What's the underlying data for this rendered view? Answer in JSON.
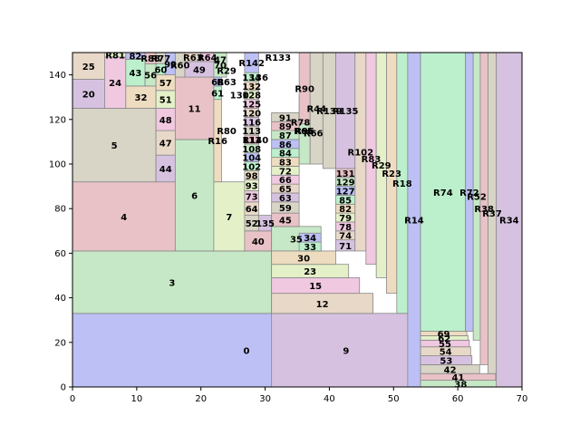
{
  "chart_data": {
    "type": "treemap",
    "title": "",
    "xlabel": "",
    "ylabel": "",
    "xlim": [
      0,
      70
    ],
    "ylim": [
      0,
      150
    ],
    "x_ticks": [
      0,
      10,
      20,
      30,
      40,
      50,
      60,
      70
    ],
    "y_ticks": [
      0,
      20,
      40,
      60,
      80,
      100,
      120,
      140
    ],
    "grid": false,
    "palette": [
      "#bcc0f4",
      "#c6e8c6",
      "#e8c2c6",
      "#d8d4c6",
      "#d6c2e0",
      "#e8d8c8",
      "#f0c8e0",
      "#e4f0c8",
      "#eedcc0",
      "#bcf0cc"
    ],
    "rects": [
      {
        "label": "0",
        "x": 0,
        "y": 0,
        "w": 54.2,
        "h": 33
      },
      {
        "label": "3",
        "x": 0,
        "y": 33,
        "w": 31,
        "h": 28
      },
      {
        "label": "4",
        "x": 0,
        "y": 61,
        "w": 16,
        "h": 31
      },
      {
        "label": "5",
        "x": 0,
        "y": 92,
        "w": 13,
        "h": 33
      },
      {
        "label": "20",
        "x": 0,
        "y": 125,
        "w": 5,
        "h": 13
      },
      {
        "label": "25",
        "x": 0,
        "y": 138,
        "w": 5,
        "h": 12
      },
      {
        "label": "24",
        "x": 5,
        "y": 125,
        "w": 3.3,
        "h": 23
      },
      {
        "label": "R81",
        "x": 5,
        "y": 148,
        "w": 3.3,
        "h": 2
      },
      {
        "label": "32",
        "x": 8.3,
        "y": 125,
        "w": 4.7,
        "h": 10
      },
      {
        "label": "43",
        "x": 8.3,
        "y": 135,
        "w": 3,
        "h": 12
      },
      {
        "label": "82",
        "x": 8.3,
        "y": 147,
        "w": 3,
        "h": 3
      },
      {
        "label": "56",
        "x": 11.3,
        "y": 135,
        "w": 1.7,
        "h": 10
      },
      {
        "label": "R88",
        "x": 11.3,
        "y": 145,
        "w": 1.7,
        "h": 5
      },
      {
        "label": "R77",
        "x": 13,
        "y": 145,
        "w": 1.5,
        "h": 5
      },
      {
        "label": "44",
        "x": 13,
        "y": 92,
        "w": 3,
        "h": 12
      },
      {
        "label": "47",
        "x": 13,
        "y": 104,
        "w": 3,
        "h": 11
      },
      {
        "label": "48",
        "x": 13,
        "y": 115,
        "w": 3,
        "h": 10
      },
      {
        "label": "51",
        "x": 13,
        "y": 125,
        "w": 3,
        "h": 8
      },
      {
        "label": "57",
        "x": 13,
        "y": 133,
        "w": 3,
        "h": 7
      },
      {
        "label": "60",
        "x": 13,
        "y": 140,
        "w": 1.5,
        "h": 5
      },
      {
        "label": "99",
        "x": 14.5,
        "y": 140,
        "w": 1.5,
        "h": 10
      },
      {
        "label": "6",
        "x": 16,
        "y": 61,
        "w": 6,
        "h": 50
      },
      {
        "label": "11",
        "x": 16,
        "y": 111,
        "w": 6,
        "h": 28
      },
      {
        "label": "R60",
        "x": 16,
        "y": 139,
        "w": 1.5,
        "h": 11
      },
      {
        "label": "49",
        "x": 17.5,
        "y": 139,
        "w": 4.5,
        "h": 7
      },
      {
        "label": "R63",
        "x": 17.5,
        "y": 146,
        "w": 2.5,
        "h": 4
      },
      {
        "label": "R64",
        "x": 20,
        "y": 146,
        "w": 2,
        "h": 4
      },
      {
        "label": "7",
        "x": 22,
        "y": 61,
        "w": 4.8,
        "h": 31
      },
      {
        "label": "R16",
        "x": 22,
        "y": 92,
        "w": 1.2,
        "h": 37
      },
      {
        "label": "61",
        "x": 22,
        "y": 129,
        "w": 1.2,
        "h": 6
      },
      {
        "label": "68",
        "x": 22,
        "y": 135,
        "w": 1.2,
        "h": 4
      },
      {
        "label": "70",
        "x": 22,
        "y": 139,
        "w": 2,
        "h": 11
      },
      {
        "label": "40",
        "x": 26.8,
        "y": 61,
        "w": 4.2,
        "h": 9
      },
      {
        "label": "52",
        "x": 26.8,
        "y": 70,
        "w": 2.2,
        "h": 7
      },
      {
        "label": "135",
        "x": 29,
        "y": 70,
        "w": 2,
        "h": 7
      },
      {
        "label": "64",
        "x": 26.8,
        "y": 77,
        "w": 2.2,
        "h": 6
      },
      {
        "label": "73",
        "x": 26.8,
        "y": 83,
        "w": 2.2,
        "h": 5
      },
      {
        "label": "93",
        "x": 26.8,
        "y": 88,
        "w": 2.2,
        "h": 5
      },
      {
        "label": "98",
        "x": 26.8,
        "y": 93,
        "w": 2.2,
        "h": 4
      },
      {
        "label": "102",
        "x": 26.8,
        "y": 97,
        "w": 2.2,
        "h": 4
      },
      {
        "label": "104",
        "x": 26.8,
        "y": 101,
        "w": 2.2,
        "h": 4
      },
      {
        "label": "108",
        "x": 26.8,
        "y": 105,
        "w": 2.2,
        "h": 4
      },
      {
        "label": "111",
        "x": 26.8,
        "y": 109,
        "w": 2.2,
        "h": 4
      },
      {
        "label": "113",
        "x": 26.8,
        "y": 113,
        "w": 2.2,
        "h": 4
      },
      {
        "label": "116",
        "x": 26.8,
        "y": 117,
        "w": 2.2,
        "h": 4
      },
      {
        "label": "120",
        "x": 26.8,
        "y": 121,
        "w": 2.2,
        "h": 4
      },
      {
        "label": "125",
        "x": 26.8,
        "y": 125,
        "w": 2.2,
        "h": 4
      },
      {
        "label": "128",
        "x": 26.8,
        "y": 129,
        "w": 2.2,
        "h": 4
      },
      {
        "label": "132",
        "x": 26.8,
        "y": 133,
        "w": 2.2,
        "h": 4
      },
      {
        "label": "134",
        "x": 26.8,
        "y": 137,
        "w": 2.2,
        "h": 4
      },
      {
        "label": "R142",
        "x": 26.8,
        "y": 141,
        "w": 2.2,
        "h": 9
      },
      {
        "label": "35",
        "x": 31,
        "y": 61,
        "w": 7.7,
        "h": 11
      },
      {
        "label": "45",
        "x": 31,
        "y": 72,
        "w": 4.3,
        "h": 6
      },
      {
        "label": "59",
        "x": 31,
        "y": 78,
        "w": 4.3,
        "h": 5
      },
      {
        "label": "63",
        "x": 31,
        "y": 83,
        "w": 4.3,
        "h": 4
      },
      {
        "label": "65",
        "x": 31,
        "y": 87,
        "w": 4.3,
        "h": 4
      },
      {
        "label": "66",
        "x": 31,
        "y": 91,
        "w": 4.3,
        "h": 4
      },
      {
        "label": "72",
        "x": 31,
        "y": 95,
        "w": 4.3,
        "h": 4
      },
      {
        "label": "83",
        "x": 31,
        "y": 99,
        "w": 4.3,
        "h": 4
      },
      {
        "label": "84",
        "x": 31,
        "y": 103,
        "w": 4.3,
        "h": 4
      },
      {
        "label": "86",
        "x": 31,
        "y": 107,
        "w": 4.3,
        "h": 4
      },
      {
        "label": "87",
        "x": 31,
        "y": 111,
        "w": 4.3,
        "h": 4
      },
      {
        "label": "89",
        "x": 31,
        "y": 115,
        "w": 4.3,
        "h": 4
      },
      {
        "label": "91",
        "x": 31,
        "y": 119,
        "w": 4.3,
        "h": 4
      },
      {
        "label": "9",
        "x": 31,
        "y": 0,
        "w": 23.2,
        "h": 33
      },
      {
        "label": "12",
        "x": 31,
        "y": 33,
        "w": 15.8,
        "h": 9
      },
      {
        "label": "15",
        "x": 31,
        "y": 42,
        "w": 13.7,
        "h": 7
      },
      {
        "label": "23",
        "x": 31,
        "y": 49,
        "w": 12,
        "h": 6
      },
      {
        "label": "30",
        "x": 31,
        "y": 55,
        "w": 10,
        "h": 6
      },
      {
        "label": "33",
        "x": 35.3,
        "y": 61,
        "w": 3.4,
        "h": 4
      },
      {
        "label": "34",
        "x": 35.3,
        "y": 65,
        "w": 3.4,
        "h": 4
      },
      {
        "label": "R96",
        "x": 35.3,
        "y": 100,
        "w": 1.7,
        "h": 30
      },
      {
        "label": "R90",
        "x": 35.3,
        "y": 118,
        "w": 1.7,
        "h": 32
      },
      {
        "label": "R44",
        "x": 37,
        "y": 100,
        "w": 2,
        "h": 50
      },
      {
        "label": "71",
        "x": 41,
        "y": 61,
        "w": 3,
        "h": 5
      },
      {
        "label": "74",
        "x": 41,
        "y": 66,
        "w": 3,
        "h": 4
      },
      {
        "label": "78",
        "x": 41,
        "y": 70,
        "w": 3,
        "h": 4
      },
      {
        "label": "79",
        "x": 41,
        "y": 74,
        "w": 3,
        "h": 4
      },
      {
        "label": "82",
        "x": 41,
        "y": 78,
        "w": 3,
        "h": 4
      },
      {
        "label": "85",
        "x": 41,
        "y": 82,
        "w": 3,
        "h": 4
      },
      {
        "label": "127",
        "x": 41,
        "y": 86,
        "w": 3,
        "h": 4
      },
      {
        "label": "129",
        "x": 41,
        "y": 90,
        "w": 3,
        "h": 4
      },
      {
        "label": "131",
        "x": 41,
        "y": 94,
        "w": 3,
        "h": 4
      },
      {
        "label": "R139",
        "x": 39,
        "y": 98,
        "w": 2,
        "h": 52
      },
      {
        "label": "R135",
        "x": 41,
        "y": 98,
        "w": 3,
        "h": 52
      },
      {
        "label": "R102",
        "x": 44,
        "y": 61,
        "w": 1.7,
        "h": 89
      },
      {
        "label": "R83",
        "x": 45.7,
        "y": 55,
        "w": 1.6,
        "h": 95
      },
      {
        "label": "R29",
        "x": 47.3,
        "y": 49,
        "w": 1.6,
        "h": 101
      },
      {
        "label": "R23",
        "x": 48.9,
        "y": 42,
        "w": 1.6,
        "h": 108
      },
      {
        "label": "R18",
        "x": 50.5,
        "y": 33,
        "w": 1.7,
        "h": 117
      },
      {
        "label": "R14",
        "x": 52.2,
        "y": 0,
        "w": 2,
        "h": 150
      },
      {
        "label": "38",
        "x": 54.2,
        "y": 0,
        "w": 12.5,
        "h": 3
      },
      {
        "label": "41",
        "x": 54.2,
        "y": 3,
        "w": 11.7,
        "h": 3
      },
      {
        "label": "42",
        "x": 54.2,
        "y": 6,
        "w": 9.2,
        "h": 4
      },
      {
        "label": "53",
        "x": 54.2,
        "y": 10,
        "w": 8,
        "h": 4
      },
      {
        "label": "54",
        "x": 54.2,
        "y": 14,
        "w": 7.8,
        "h": 4
      },
      {
        "label": "55",
        "x": 54.2,
        "y": 18,
        "w": 7.6,
        "h": 3
      },
      {
        "label": "62",
        "x": 54.2,
        "y": 21,
        "w": 7.4,
        "h": 2
      },
      {
        "label": "69",
        "x": 54.2,
        "y": 23,
        "w": 7.2,
        "h": 2
      },
      {
        "label": "R74",
        "x": 54.2,
        "y": 25,
        "w": 7,
        "h": 125
      },
      {
        "label": "R72",
        "x": 61.2,
        "y": 25,
        "w": 1.2,
        "h": 125
      },
      {
        "label": "R52",
        "x": 62.4,
        "y": 21,
        "w": 1.1,
        "h": 129
      },
      {
        "label": "R38",
        "x": 63.5,
        "y": 10,
        "w": 1.2,
        "h": 140
      },
      {
        "label": "R37",
        "x": 64.7,
        "y": 6,
        "w": 1.3,
        "h": 144
      },
      {
        "label": "R34",
        "x": 66,
        "y": 0,
        "w": 4,
        "h": 150
      }
    ],
    "strip_labels": [
      {
        "label": "R133",
        "x": 32,
        "y": 148
      },
      {
        "label": "R78",
        "x": 35.5,
        "y": 119
      },
      {
        "label": "R65",
        "x": 36,
        "y": 115
      },
      {
        "label": "R66",
        "x": 37.5,
        "y": 114
      },
      {
        "label": "R140",
        "x": 28.5,
        "y": 111
      },
      {
        "label": "R80",
        "x": 24,
        "y": 115
      },
      {
        "label": "R29",
        "x": 24,
        "y": 142
      },
      {
        "label": "R63",
        "x": 24,
        "y": 137
      },
      {
        "label": "47",
        "x": 23,
        "y": 147
      },
      {
        "label": "130",
        "x": 26,
        "y": 131
      },
      {
        "label": "136",
        "x": 29,
        "y": 139
      }
    ]
  }
}
